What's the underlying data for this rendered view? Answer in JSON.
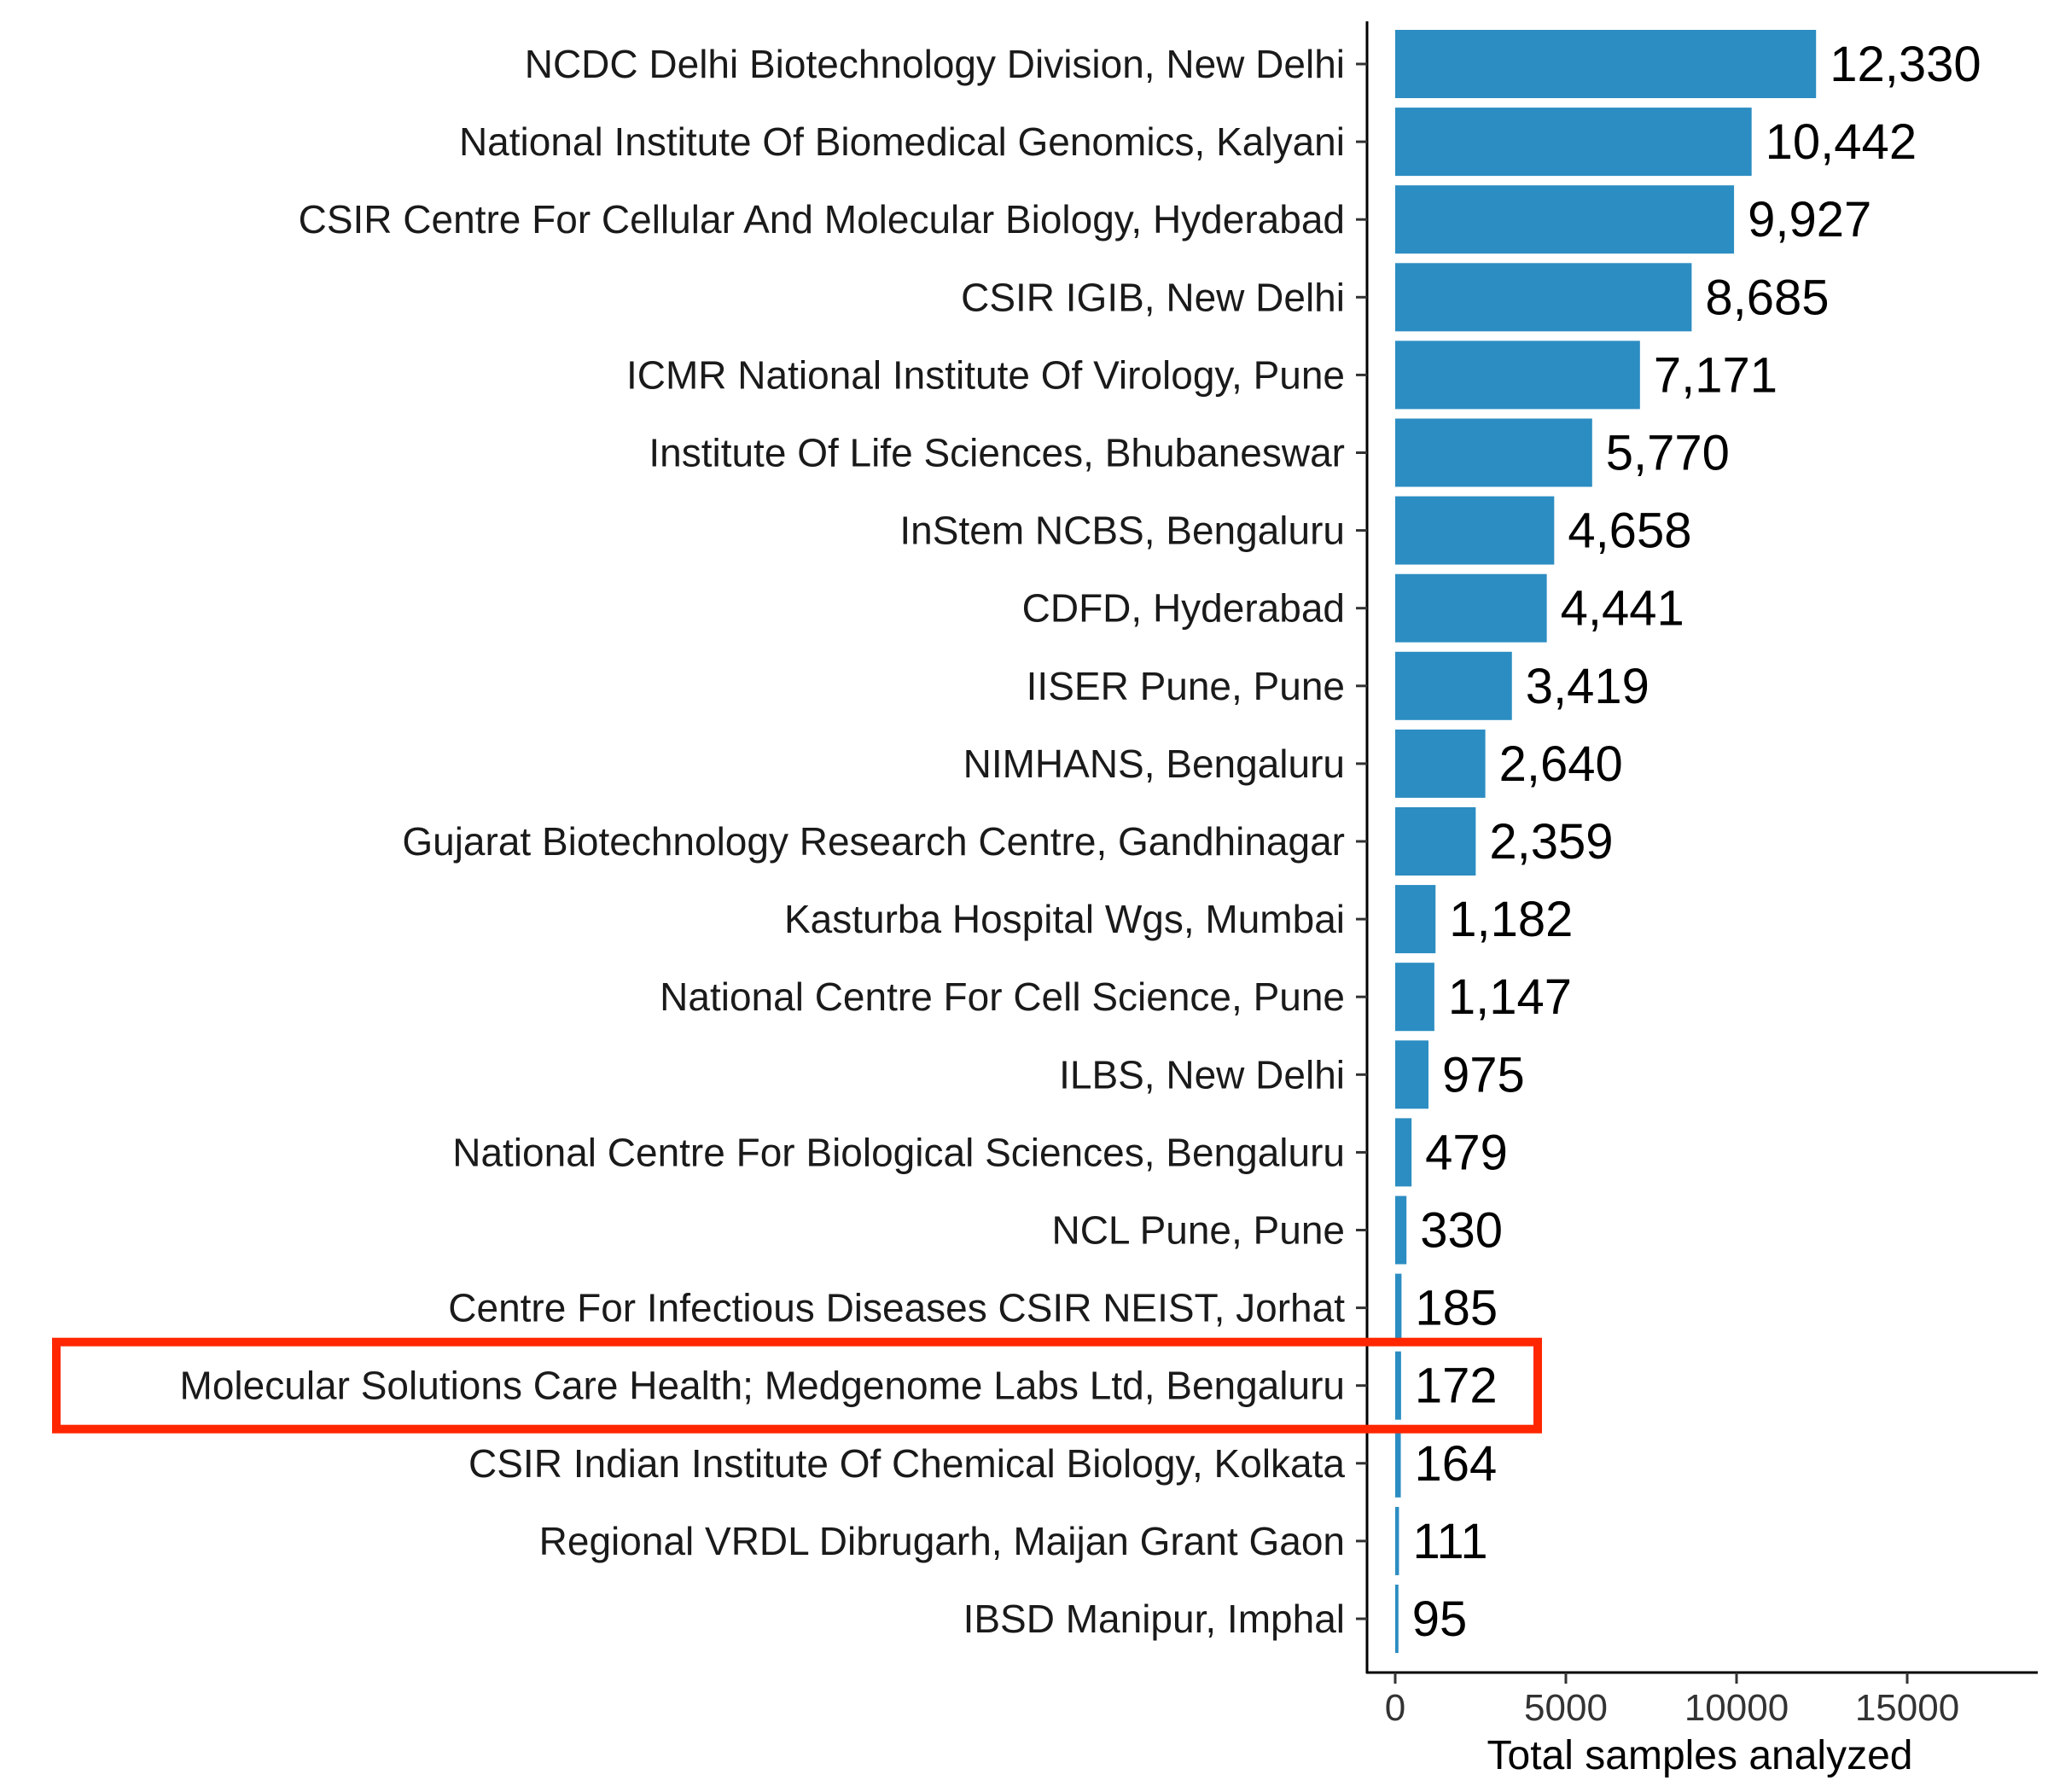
{
  "chart_data": {
    "type": "bar",
    "orientation": "horizontal",
    "categories": [
      "NCDC Delhi Biotechnology Division, New Delhi",
      "National Institute Of Biomedical Genomics, Kalyani",
      "CSIR Centre For Cellular And Molecular Biology, Hyderabad",
      "CSIR IGIB, New Delhi",
      "ICMR National Institute Of Virology, Pune",
      "Institute Of Life Sciences, Bhubaneswar",
      "InStem NCBS, Bengaluru",
      "CDFD, Hyderabad",
      "IISER Pune, Pune",
      "NIMHANS, Bengaluru",
      "Gujarat Biotechnology Research Centre, Gandhinagar",
      "Kasturba Hospital Wgs, Mumbai",
      "National Centre For Cell Science, Pune",
      "ILBS, New Delhi",
      "National Centre For Biological Sciences, Bengaluru",
      "NCL Pune, Pune",
      "Centre For Infectious Diseases CSIR NEIST, Jorhat",
      "Molecular Solutions Care Health; Medgenome Labs Ltd, Bengaluru",
      "CSIR Indian Institute Of Chemical Biology, Kolkata",
      "Regional VRDL Dibrugarh, Maijan Grant Gaon",
      "IBSD Manipur, Imphal"
    ],
    "values": [
      12330,
      10442,
      9927,
      8685,
      7171,
      5770,
      4658,
      4441,
      3419,
      2640,
      2359,
      1182,
      1147,
      975,
      479,
      330,
      185,
      172,
      164,
      111,
      95
    ],
    "value_labels": [
      "12,330",
      "10,442",
      "9,927",
      "8,685",
      "7,171",
      "5,770",
      "4,658",
      "4,441",
      "3,419",
      "2,640",
      "2,359",
      "1,182",
      "1,147",
      "975",
      "479",
      "330",
      "185",
      "172",
      "164",
      "111",
      "95"
    ],
    "xlabel": "Total samples analyzed",
    "ylabel": "",
    "xlim": [
      0,
      18500
    ],
    "xticks": [
      0,
      5000,
      10000,
      15000
    ],
    "xtick_labels": [
      "0",
      "5000",
      "10000",
      "15000"
    ],
    "grid": false,
    "legend": "none",
    "bar_color": "#2c8dc2",
    "highlighted_category": "Molecular Solutions Care Health; Medgenome Labs Ltd, Bengaluru",
    "highlight_color": "#ff2600"
  }
}
